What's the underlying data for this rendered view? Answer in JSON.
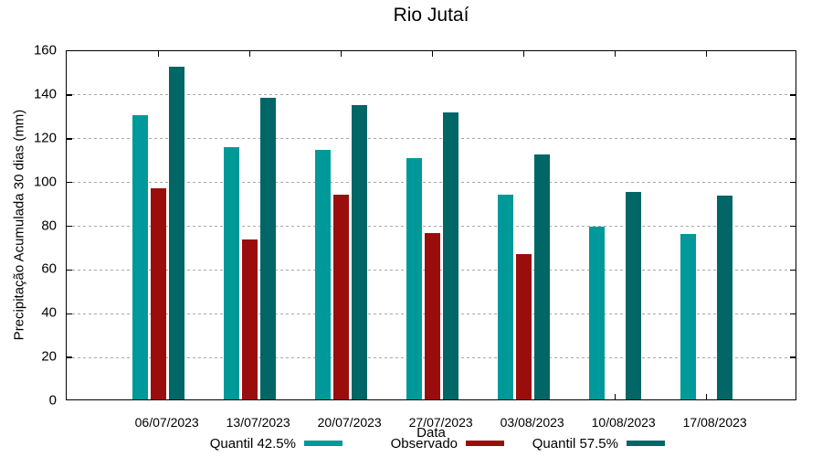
{
  "chart_data": {
    "type": "bar",
    "title": "Rio Jutaí",
    "xlabel": "Data",
    "ylabel": "Precipitação Acumulada 30 dias (mm)",
    "ylim": [
      0,
      160
    ],
    "ytick_step": 20,
    "grid": true,
    "legend_position": "bottom",
    "categories": [
      "06/07/2023",
      "13/07/2023",
      "20/07/2023",
      "27/07/2023",
      "03/08/2023",
      "10/08/2023",
      "17/08/2023"
    ],
    "series": [
      {
        "name": "Quantil 42.5%",
        "color": "#009999",
        "values": [
          130,
          115.5,
          114,
          110.5,
          93.5,
          79,
          75.5
        ]
      },
      {
        "name": "Observado",
        "color": "#9B0D0D",
        "values": [
          96.5,
          73,
          93.5,
          76,
          66.5,
          null,
          null
        ]
      },
      {
        "name": "Quantil 57.5%",
        "color": "#006666",
        "values": [
          152,
          138,
          134.5,
          131,
          112,
          95,
          93
        ]
      }
    ]
  },
  "colors": {
    "axis": "#000000",
    "grid": "#A8A8A8",
    "background": "#FFFFFF"
  }
}
